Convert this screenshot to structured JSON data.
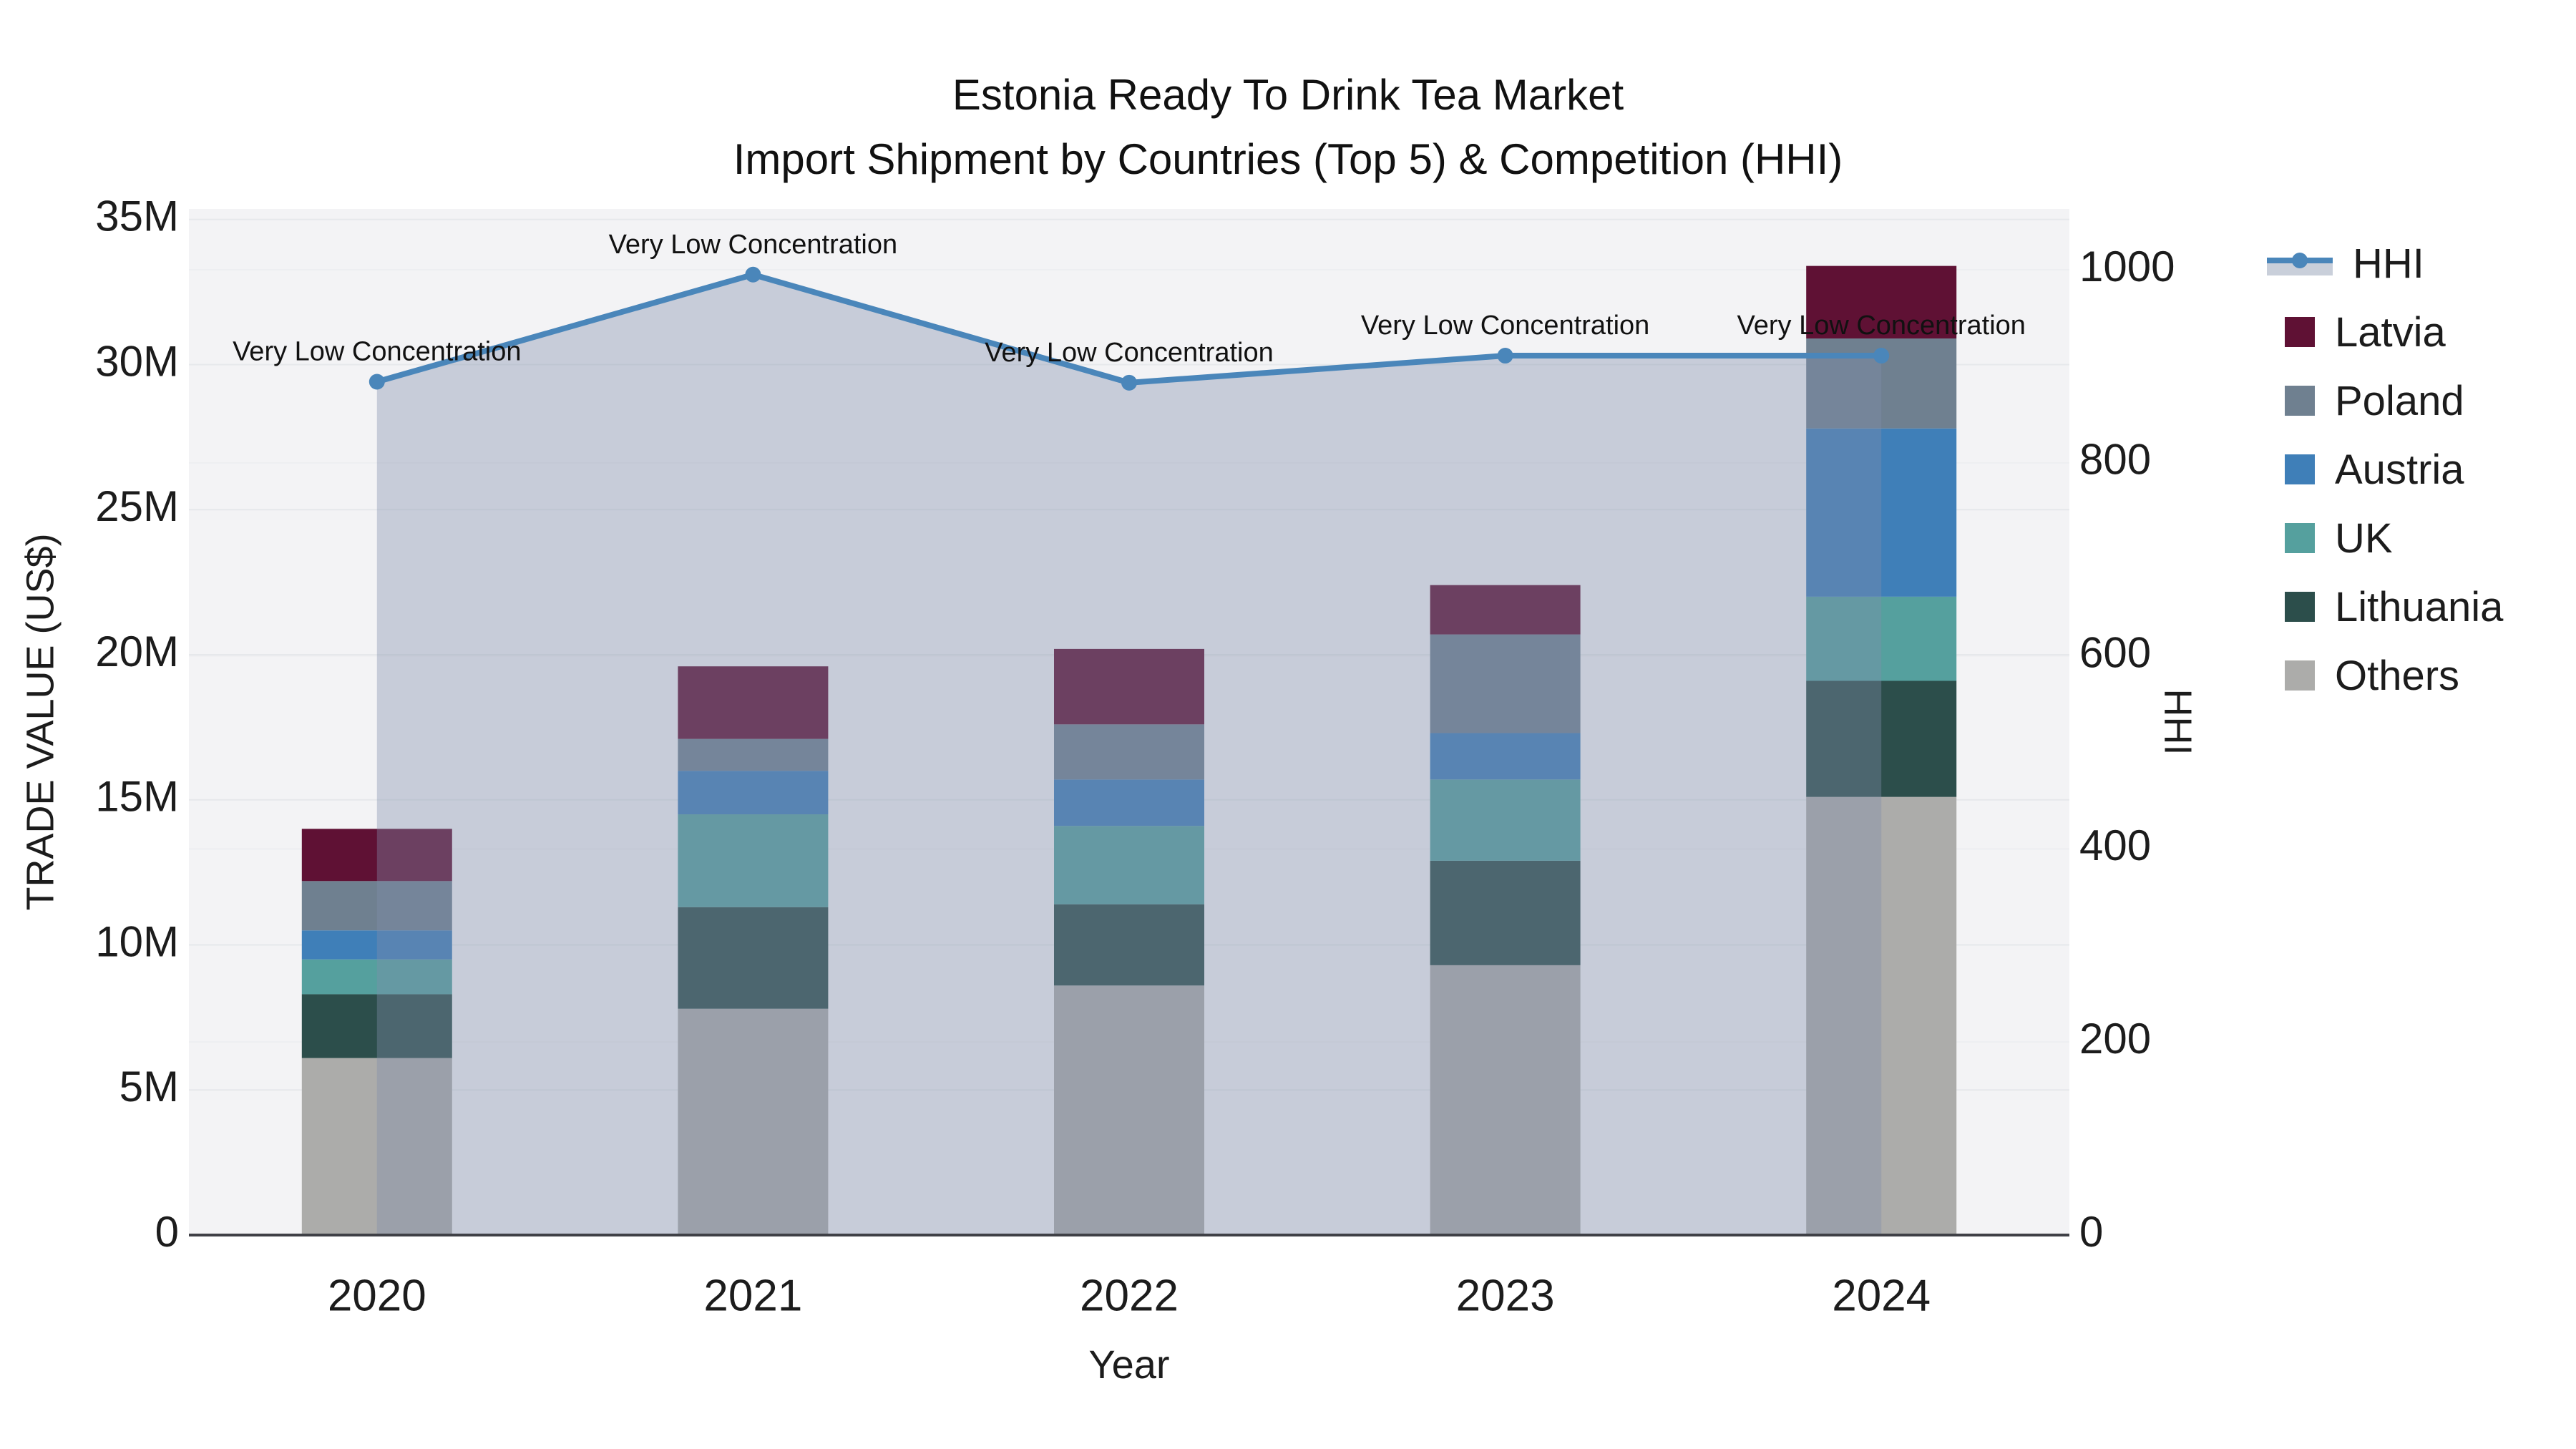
{
  "title": {
    "line1": "Estonia Ready To Drink Tea Market",
    "line2": "Import Shipment by Countries (Top 5) & Competition (HHI)"
  },
  "axes": {
    "x_title": "Year",
    "y_left_title": "TRADE VALUE (US$)",
    "y_right_title": "HHI",
    "x_ticks": [
      "2020",
      "2021",
      "2022",
      "2023",
      "2024"
    ],
    "y_left_ticks": [
      "0",
      "5M",
      "10M",
      "15M",
      "20M",
      "25M",
      "30M",
      "35M"
    ],
    "y_left_tick_values": [
      0,
      5,
      10,
      15,
      20,
      25,
      30,
      35
    ],
    "y_right_ticks": [
      "0",
      "200",
      "400",
      "600",
      "800",
      "1000"
    ],
    "y_right_tick_values": [
      0,
      200,
      400,
      600,
      800,
      1000
    ],
    "y_left_max": 35,
    "y_right_max": 1000
  },
  "legend": [
    {
      "label": "HHI",
      "type": "line",
      "color": "#4a86ba"
    },
    {
      "label": "Latvia",
      "type": "box",
      "color": "#5f1134"
    },
    {
      "label": "Poland",
      "type": "box",
      "color": "#6f8090"
    },
    {
      "label": "Austria",
      "type": "box",
      "color": "#3f7fb8"
    },
    {
      "label": "UK",
      "type": "box",
      "color": "#55a09e"
    },
    {
      "label": "Lithuania",
      "type": "box",
      "color": "#2c4e4b"
    },
    {
      "label": "Others",
      "type": "box",
      "color": "#acacaa"
    }
  ],
  "colors": {
    "plot_bg": "#f3f3f5",
    "grid_major": "#e6e8eb",
    "grid_minor": "#edeef1",
    "axis_line": "#3f4046",
    "text": "#1c1c1c",
    "hhi_line": "#4a86ba",
    "hhi_area": "rgba(130,143,172,0.38)"
  },
  "chart_data": {
    "type": "bar+line",
    "title": "Estonia Ready To Drink Tea Market — Import Shipment by Countries (Top 5) & Competition (HHI)",
    "xlabel": "Year",
    "ylabel_left": "TRADE VALUE (US$)",
    "ylabel_right": "HHI",
    "categories": [
      "2020",
      "2021",
      "2022",
      "2023",
      "2024"
    ],
    "bar_unit": "million US$",
    "stack_order_bottom_to_top": [
      "Others",
      "Lithuania",
      "UK",
      "Austria",
      "Poland",
      "Latvia"
    ],
    "series": [
      {
        "name": "Others",
        "color": "#acacaa",
        "values": [
          6.1,
          7.8,
          8.6,
          9.3,
          15.1
        ]
      },
      {
        "name": "Lithuania",
        "color": "#2c4e4b",
        "values": [
          2.2,
          3.5,
          2.8,
          3.6,
          4.0
        ]
      },
      {
        "name": "UK",
        "color": "#55a09e",
        "values": [
          1.2,
          3.2,
          2.7,
          2.8,
          2.9
        ]
      },
      {
        "name": "Austria",
        "color": "#3f7fb8",
        "values": [
          1.0,
          1.5,
          1.6,
          1.6,
          5.8
        ]
      },
      {
        "name": "Poland",
        "color": "#6f8090",
        "values": [
          1.7,
          1.1,
          1.9,
          3.4,
          3.1
        ]
      },
      {
        "name": "Latvia",
        "color": "#5f1134",
        "values": [
          1.8,
          2.5,
          2.6,
          1.7,
          2.5
        ]
      }
    ],
    "bar_totals": [
      14.0,
      19.6,
      20.2,
      22.4,
      33.4
    ],
    "line_series": {
      "name": "HHI",
      "color": "#4a86ba",
      "area_fill": "rgba(130,143,172,0.38)",
      "values": [
        884,
        995,
        883,
        911,
        911
      ]
    },
    "annotations": [
      {
        "x": "2020",
        "text": "Very Low Concentration"
      },
      {
        "x": "2021",
        "text": "Very Low Concentration"
      },
      {
        "x": "2022",
        "text": "Very Low Concentration"
      },
      {
        "x": "2023",
        "text": "Very Low Concentration"
      },
      {
        "x": "2024",
        "text": "Very Low Concentration"
      }
    ],
    "ylim_left": [
      0,
      35.4
    ],
    "ylim_right": [
      0,
      1000
    ],
    "grid": true,
    "legend_position": "right"
  }
}
